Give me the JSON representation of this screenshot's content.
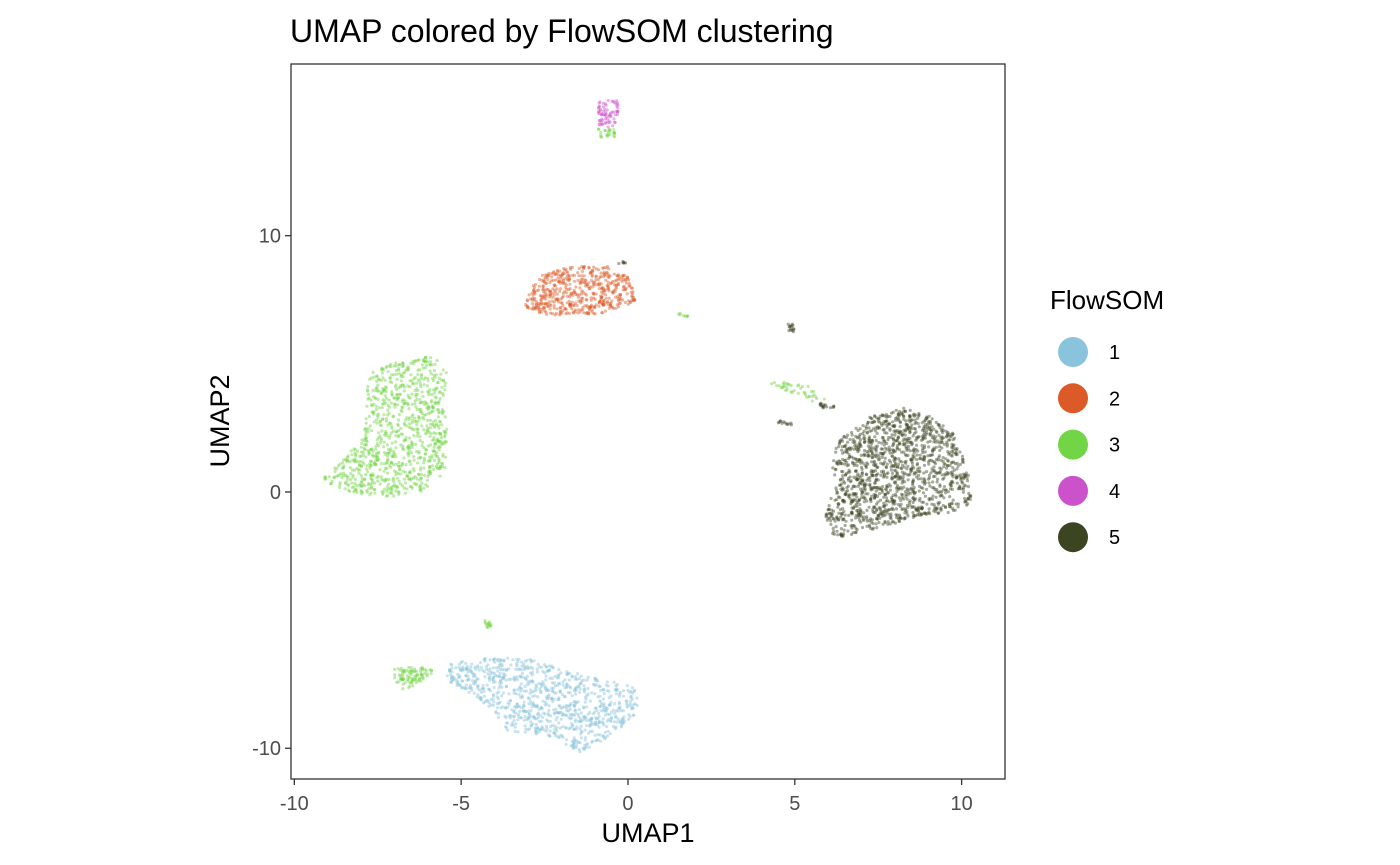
{
  "chart_data": {
    "type": "scatter",
    "title": "UMAP colored by FlowSOM clustering",
    "xlabel": "UMAP1",
    "ylabel": "UMAP2",
    "xlim": [
      -10.1,
      11.3
    ],
    "ylim": [
      -11.2,
      16.7
    ],
    "x_ticks": [
      -10,
      -5,
      0,
      5,
      10
    ],
    "x_tick_labels": [
      "-10",
      "-5",
      "0",
      "5",
      "10"
    ],
    "y_ticks": [
      -10,
      0,
      10
    ],
    "y_tick_labels": [
      "-10",
      "0",
      "10"
    ],
    "grid": false,
    "legend": {
      "title": "FlowSOM",
      "placement": "right",
      "entries": [
        {
          "label": "1",
          "color": "#8ac4dc"
        },
        {
          "label": "2",
          "color": "#dc5a28"
        },
        {
          "label": "3",
          "color": "#72d545"
        },
        {
          "label": "4",
          "color": "#cc52cc"
        },
        {
          "label": "5",
          "color": "#3c4522"
        }
      ]
    },
    "series": [
      {
        "name": "1",
        "color": "#8ac4dc",
        "clusters": [
          {
            "poly": [
              [
                -5.3,
                -6.7
              ],
              [
                -4.2,
                -6.4
              ],
              [
                -3.0,
                -6.5
              ],
              [
                -1.2,
                -7.2
              ],
              [
                0.3,
                -7.6
              ],
              [
                0.3,
                -8.6
              ],
              [
                -0.4,
                -9.4
              ],
              [
                -1.4,
                -10.2
              ],
              [
                -2.4,
                -9.5
              ],
              [
                -3.6,
                -9.4
              ],
              [
                -4.0,
                -8.6
              ],
              [
                -4.8,
                -7.8
              ],
              [
                -5.5,
                -7.3
              ]
            ],
            "n": 900
          }
        ]
      },
      {
        "name": "2",
        "color": "#dc5a28",
        "clusters": [
          {
            "poly": [
              [
                -3.1,
                7.4
              ],
              [
                -2.7,
                8.4
              ],
              [
                -1.8,
                8.8
              ],
              [
                -0.6,
                8.8
              ],
              [
                0.0,
                8.4
              ],
              [
                0.3,
                7.5
              ],
              [
                -0.5,
                7.0
              ],
              [
                -1.4,
                6.9
              ],
              [
                -2.4,
                6.9
              ],
              [
                -3.0,
                7.1
              ]
            ],
            "n": 520
          }
        ]
      },
      {
        "name": "3",
        "color": "#72d545",
        "clusters": [
          {
            "poly": [
              [
                -7.8,
                4.6
              ],
              [
                -7.0,
                5.1
              ],
              [
                -6.0,
                5.3
              ],
              [
                -5.4,
                5.0
              ],
              [
                -5.5,
                3.4
              ],
              [
                -5.4,
                2.0
              ],
              [
                -5.5,
                0.7
              ],
              [
                -6.2,
                0.0
              ],
              [
                -7.0,
                -0.2
              ],
              [
                -7.8,
                -0.1
              ],
              [
                -8.6,
                0.0
              ],
              [
                -9.2,
                0.6
              ],
              [
                -8.4,
                1.4
              ],
              [
                -7.9,
                2.4
              ]
            ],
            "n": 900
          },
          {
            "poly": [
              [
                -7.0,
                -6.9
              ],
              [
                -6.2,
                -6.8
              ],
              [
                -5.8,
                -7.0
              ],
              [
                -6.4,
                -7.6
              ],
              [
                -6.8,
                -7.7
              ],
              [
                -7.0,
                -7.3
              ]
            ],
            "n": 90
          },
          {
            "poly": [
              [
                -4.3,
                -5.0
              ],
              [
                -4.1,
                -5.1
              ],
              [
                -4.1,
                -5.5
              ],
              [
                -4.3,
                -5.4
              ]
            ],
            "n": 14
          },
          {
            "poly": [
              [
                -0.9,
                14.2
              ],
              [
                -0.4,
                14.2
              ],
              [
                -0.4,
                13.8
              ],
              [
                -0.8,
                13.8
              ]
            ],
            "n": 24
          },
          {
            "poly": [
              [
                4.3,
                4.4
              ],
              [
                5.3,
                4.2
              ],
              [
                6.0,
                3.6
              ],
              [
                5.8,
                3.4
              ],
              [
                5.0,
                3.8
              ],
              [
                4.3,
                4.2
              ]
            ],
            "n": 40
          },
          {
            "poly": [
              [
                1.5,
                7.0
              ],
              [
                1.8,
                6.9
              ],
              [
                1.8,
                6.8
              ],
              [
                1.5,
                6.9
              ]
            ],
            "n": 8
          }
        ]
      },
      {
        "name": "4",
        "color": "#cc52cc",
        "clusters": [
          {
            "poly": [
              [
                -0.9,
                15.3
              ],
              [
                -0.3,
                15.3
              ],
              [
                -0.3,
                14.5
              ],
              [
                -0.5,
                14.2
              ],
              [
                -0.9,
                14.3
              ]
            ],
            "n": 70
          }
        ]
      },
      {
        "name": "5",
        "color": "#3c4522",
        "clusters": [
          {
            "poly": [
              [
                6.3,
                2.0
              ],
              [
                7.2,
                2.9
              ],
              [
                8.2,
                3.3
              ],
              [
                9.0,
                3.0
              ],
              [
                9.7,
                2.4
              ],
              [
                10.2,
                1.0
              ],
              [
                10.3,
                -0.5
              ],
              [
                9.6,
                -0.8
              ],
              [
                8.6,
                -1.0
              ],
              [
                7.3,
                -1.5
              ],
              [
                6.2,
                -1.8
              ],
              [
                5.9,
                -1.0
              ],
              [
                6.2,
                0.3
              ],
              [
                6.1,
                1.2
              ]
            ],
            "n": 1400
          },
          {
            "poly": [
              [
                4.8,
                6.6
              ],
              [
                5.0,
                6.6
              ],
              [
                5.0,
                6.2
              ],
              [
                4.8,
                6.3
              ]
            ],
            "n": 14
          },
          {
            "poly": [
              [
                4.5,
                2.8
              ],
              [
                4.9,
                2.7
              ],
              [
                4.9,
                2.6
              ],
              [
                4.5,
                2.7
              ]
            ],
            "n": 12
          },
          {
            "poly": [
              [
                5.6,
                3.5
              ],
              [
                6.2,
                3.4
              ],
              [
                6.2,
                3.2
              ],
              [
                5.6,
                3.3
              ]
            ],
            "n": 16
          },
          {
            "poly": [
              [
                -0.3,
                9.0
              ],
              [
                0.0,
                9.0
              ],
              [
                0.0,
                8.9
              ],
              [
                -0.3,
                8.9
              ]
            ],
            "n": 6
          }
        ]
      }
    ]
  }
}
